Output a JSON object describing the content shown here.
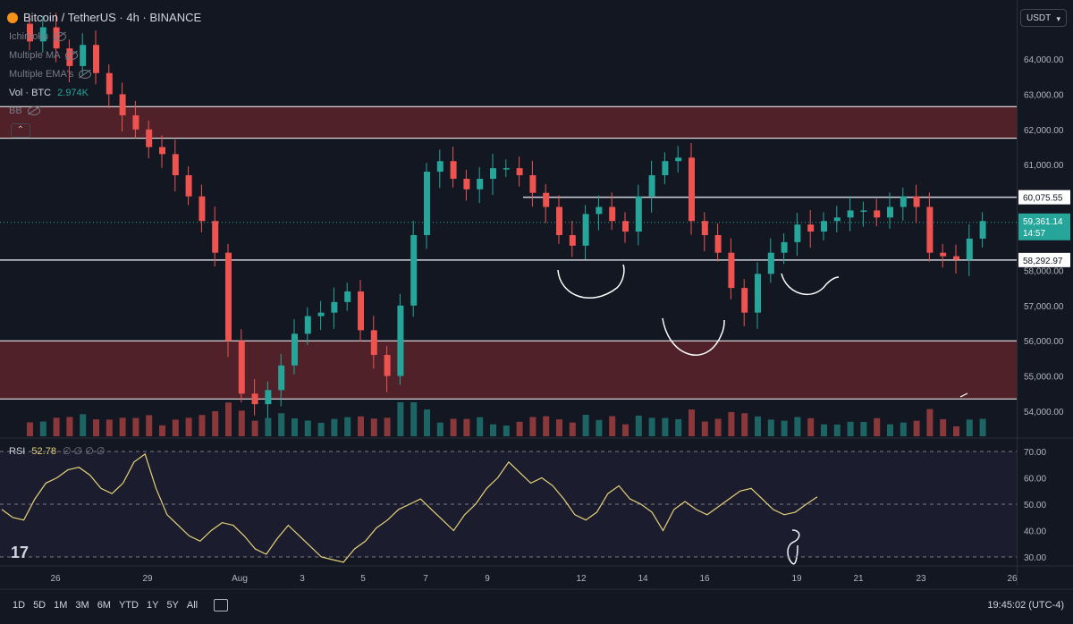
{
  "header": {
    "title": "Bitcoin / TetherUS · 4h · BINANCE"
  },
  "indicators": [
    {
      "label": "Ichimoku"
    },
    {
      "label": "Multiple MA"
    },
    {
      "label": "Multiple EMA's"
    }
  ],
  "volume": {
    "label": "Vol · BTC",
    "value": "2.974K"
  },
  "bb": {
    "label": "BB"
  },
  "rsi": {
    "label": "RSI",
    "value": "52.78",
    "extras": "∅ ∅ ∅ ∅"
  },
  "currency": "USDT",
  "timeframes": [
    "1D",
    "5D",
    "1M",
    "3M",
    "6M",
    "YTD",
    "1Y",
    "5Y",
    "All"
  ],
  "clock": "19:45:02 (UTC-4)",
  "colors": {
    "up": "#26a69a",
    "down": "#ef5350",
    "zone": "#5c2329",
    "rsi": "#e6d27a",
    "bg": "#131722"
  },
  "chart_data": {
    "type": "candlestick",
    "symbol": "BTCUSDT",
    "timeframe": "4h",
    "exchange": "BINANCE",
    "ylim": [
      53600,
      65200
    ],
    "price_ticks": [
      "64,000.00",
      "63,000.00",
      "62,000.00",
      "61,000.00",
      "60,000.00",
      "58,000.00",
      "57,000.00",
      "56,000.00",
      "55,000.00",
      "54,000.00"
    ],
    "price_tick_values": [
      64000,
      63000,
      62000,
      61000,
      60000,
      58000,
      57000,
      56000,
      55000,
      54000
    ],
    "x_ticks": [
      "26",
      "29",
      "Aug",
      "3",
      "5",
      "7",
      "9",
      "12",
      "14",
      "16",
      "19",
      "21",
      "23",
      "26"
    ],
    "price_labels": [
      {
        "text": "60,075.55",
        "value": 60075.55
      },
      {
        "text": "58,292.97",
        "value": 58292.97
      }
    ],
    "last_price": {
      "text": "59,361.14",
      "value": 59361.14,
      "countdown": "14:57"
    },
    "zones": [
      {
        "from": 61750,
        "to": 62650
      },
      {
        "from": 54350,
        "to": 56000
      }
    ],
    "horizontal_lines": [
      58292.97,
      60075.55
    ],
    "closes": [
      64500,
      64900,
      64300,
      63800,
      64400,
      63600,
      63000,
      62400,
      62000,
      61500,
      61300,
      60700,
      60100,
      59400,
      58500,
      56000,
      54500,
      54200,
      54600,
      55300,
      56200,
      56700,
      56800,
      57100,
      57400,
      56300,
      55600,
      55000,
      57000,
      59000,
      60800,
      61100,
      60600,
      60300,
      60600,
      60900,
      60900,
      60700,
      60200,
      59800,
      59000,
      58700,
      59600,
      59800,
      59400,
      59100,
      60100,
      60700,
      61100,
      61200,
      59400,
      59000,
      58500,
      57500,
      56800,
      57900,
      58500,
      58800,
      59300,
      59100,
      59400,
      59500,
      59700,
      59700,
      59500,
      59800,
      60100,
      59800,
      58500,
      58400,
      58300,
      58900,
      59400
    ],
    "rsi": {
      "ylim": [
        28,
        72
      ],
      "ticks": [
        "70.00",
        "60.00",
        "50.00",
        "40.00",
        "30.00"
      ],
      "tick_values": [
        70,
        60,
        50,
        40,
        30
      ],
      "values": [
        48,
        45,
        44,
        52,
        58,
        60,
        63,
        64,
        61,
        56,
        54,
        58,
        66,
        69,
        56,
        46,
        42,
        38,
        36,
        40,
        43,
        42,
        38,
        33,
        31,
        37,
        42,
        38,
        34,
        30,
        29,
        28,
        33,
        36,
        41,
        44,
        48,
        50,
        52,
        48,
        44,
        40,
        46,
        50,
        56,
        60,
        66,
        62,
        58,
        60,
        57,
        52,
        46,
        44,
        47,
        54,
        57,
        52,
        50,
        47,
        40,
        48,
        51,
        48,
        46,
        49,
        52,
        55,
        56,
        52,
        48,
        46,
        47,
        50,
        52.78
      ]
    }
  },
  "annotations": {
    "drawn_curves": 4
  }
}
